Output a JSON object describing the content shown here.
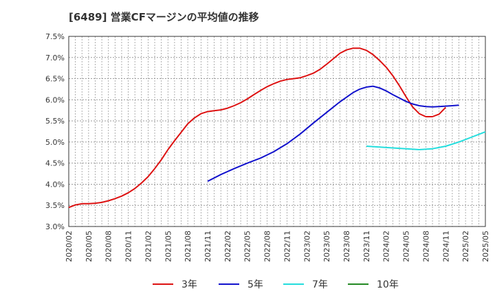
{
  "chart_data": {
    "type": "line",
    "title": "[6489]  営業CFマージンの平均値の推移",
    "xlabel": "",
    "ylabel": "",
    "ylim": [
      3.0,
      7.5
    ],
    "y_ticks": [
      "3.0%",
      "3.5%",
      "4.0%",
      "4.5%",
      "5.0%",
      "5.5%",
      "6.0%",
      "6.5%",
      "7.0%",
      "7.5%"
    ],
    "x_ticks": [
      "2020/02",
      "2020/05",
      "2020/08",
      "2020/11",
      "2021/02",
      "2021/05",
      "2021/08",
      "2021/11",
      "2022/02",
      "2022/05",
      "2022/08",
      "2022/11",
      "2023/02",
      "2023/05",
      "2023/08",
      "2023/11",
      "2024/02",
      "2024/05",
      "2024/08",
      "2024/11",
      "2025/02",
      "2025/05"
    ],
    "grid": true,
    "legend_position": "bottom",
    "series": [
      {
        "name": "3年",
        "color": "#dd1111",
        "points": [
          [
            "2020/02",
            3.45
          ],
          [
            "2020/03",
            3.51
          ],
          [
            "2020/04",
            3.54
          ],
          [
            "2020/05",
            3.54
          ],
          [
            "2020/06",
            3.55
          ],
          [
            "2020/07",
            3.57
          ],
          [
            "2020/08",
            3.61
          ],
          [
            "2020/09",
            3.66
          ],
          [
            "2020/10",
            3.72
          ],
          [
            "2020/11",
            3.8
          ],
          [
            "2020/12",
            3.9
          ],
          [
            "2021/01",
            4.03
          ],
          [
            "2021/02",
            4.18
          ],
          [
            "2021/03",
            4.37
          ],
          [
            "2021/04",
            4.58
          ],
          [
            "2021/05",
            4.82
          ],
          [
            "2021/06",
            5.03
          ],
          [
            "2021/07",
            5.23
          ],
          [
            "2021/08",
            5.43
          ],
          [
            "2021/09",
            5.57
          ],
          [
            "2021/10",
            5.67
          ],
          [
            "2021/11",
            5.72
          ],
          [
            "2021/12",
            5.74
          ],
          [
            "2022/01",
            5.76
          ],
          [
            "2022/02",
            5.8
          ],
          [
            "2022/03",
            5.86
          ],
          [
            "2022/04",
            5.93
          ],
          [
            "2022/05",
            6.02
          ],
          [
            "2022/06",
            6.12
          ],
          [
            "2022/07",
            6.22
          ],
          [
            "2022/08",
            6.31
          ],
          [
            "2022/09",
            6.38
          ],
          [
            "2022/10",
            6.44
          ],
          [
            "2022/11",
            6.48
          ],
          [
            "2022/12",
            6.5
          ],
          [
            "2023/01",
            6.52
          ],
          [
            "2023/02",
            6.57
          ],
          [
            "2023/03",
            6.63
          ],
          [
            "2023/04",
            6.72
          ],
          [
            "2023/05",
            6.84
          ],
          [
            "2023/06",
            6.97
          ],
          [
            "2023/07",
            7.1
          ],
          [
            "2023/08",
            7.18
          ],
          [
            "2023/09",
            7.22
          ],
          [
            "2023/10",
            7.22
          ],
          [
            "2023/11",
            7.17
          ],
          [
            "2023/12",
            7.07
          ],
          [
            "2024/01",
            6.93
          ],
          [
            "2024/02",
            6.77
          ],
          [
            "2024/03",
            6.57
          ],
          [
            "2024/04",
            6.33
          ],
          [
            "2024/05",
            6.07
          ],
          [
            "2024/06",
            5.83
          ],
          [
            "2024/07",
            5.67
          ],
          [
            "2024/08",
            5.6
          ],
          [
            "2024/09",
            5.6
          ],
          [
            "2024/10",
            5.66
          ],
          [
            "2024/11",
            5.82
          ]
        ]
      },
      {
        "name": "5年",
        "color": "#1111cc",
        "points": [
          [
            "2021/11",
            4.07
          ],
          [
            "2022/01",
            4.23
          ],
          [
            "2022/03",
            4.37
          ],
          [
            "2022/05",
            4.5
          ],
          [
            "2022/07",
            4.62
          ],
          [
            "2022/09",
            4.77
          ],
          [
            "2022/11",
            4.96
          ],
          [
            "2023/01",
            5.19
          ],
          [
            "2023/03",
            5.45
          ],
          [
            "2023/05",
            5.7
          ],
          [
            "2023/07",
            5.95
          ],
          [
            "2023/09",
            6.17
          ],
          [
            "2023/10",
            6.25
          ],
          [
            "2023/11",
            6.3
          ],
          [
            "2023/12",
            6.32
          ],
          [
            "2024/01",
            6.28
          ],
          [
            "2024/02",
            6.21
          ],
          [
            "2024/03",
            6.12
          ],
          [
            "2024/04",
            6.04
          ],
          [
            "2024/05",
            5.96
          ],
          [
            "2024/06",
            5.9
          ],
          [
            "2024/07",
            5.86
          ],
          [
            "2024/08",
            5.84
          ],
          [
            "2024/09",
            5.83
          ],
          [
            "2024/10",
            5.84
          ],
          [
            "2024/11",
            5.85
          ],
          [
            "2024/12",
            5.86
          ],
          [
            "2025/01",
            5.87
          ]
        ]
      },
      {
        "name": "7年",
        "color": "#22dddd",
        "points": [
          [
            "2023/11",
            4.9
          ],
          [
            "2024/02",
            4.87
          ],
          [
            "2024/05",
            4.84
          ],
          [
            "2024/07",
            4.82
          ],
          [
            "2024/09",
            4.84
          ],
          [
            "2024/11",
            4.9
          ],
          [
            "2025/01",
            5.0
          ],
          [
            "2025/03",
            5.12
          ],
          [
            "2025/05",
            5.24
          ]
        ]
      },
      {
        "name": "10年",
        "color": "#228822",
        "points": []
      }
    ]
  }
}
